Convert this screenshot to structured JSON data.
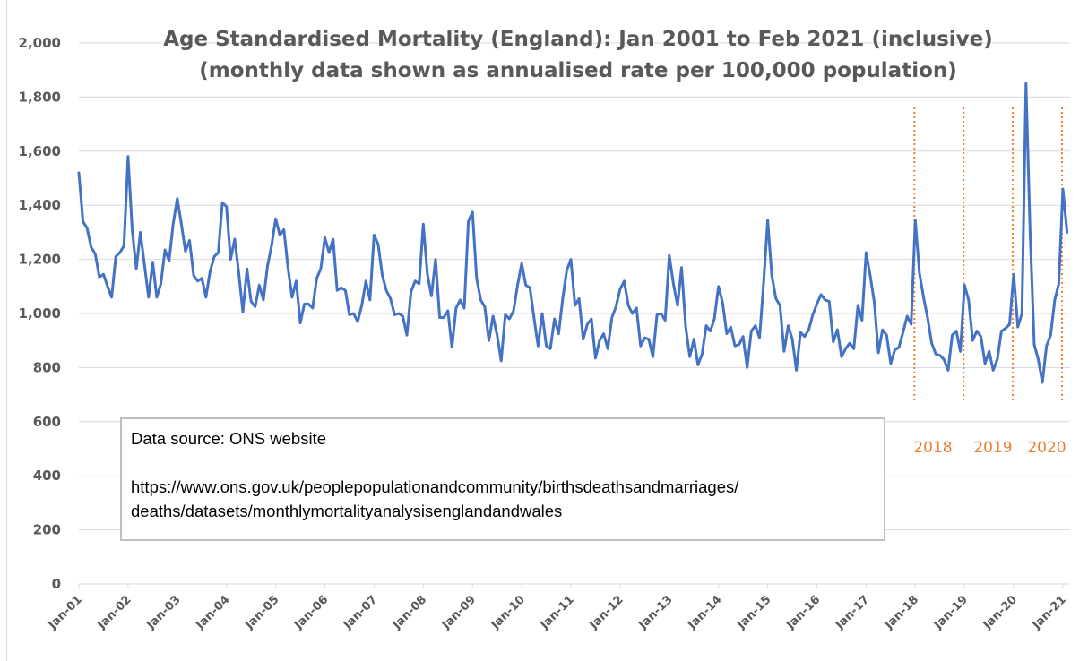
{
  "chart_data": {
    "type": "line",
    "title": "Age Standardised Mortality (England): Jan 2001 to Feb 2021 (inclusive)",
    "subtitle": "(monthly data shown as annualised rate per 100,000 population)",
    "xlabel": "",
    "ylabel": "",
    "ylim": [
      0,
      2000
    ],
    "grid": true,
    "legend": "none",
    "y_ticks": [
      "0",
      "200",
      "400",
      "600",
      "800",
      "1,000",
      "1,200",
      "1,400",
      "1,600",
      "1,800",
      "2,000"
    ],
    "x_ticks": [
      "Jan-01",
      "Jan-02",
      "Jan-03",
      "Jan-04",
      "Jan-05",
      "Jan-06",
      "Jan-07",
      "Jan-08",
      "Jan-09",
      "Jan-10",
      "Jan-11",
      "Jan-12",
      "Jan-13",
      "Jan-14",
      "Jan-15",
      "Jan-16",
      "Jan-17",
      "Jan-18",
      "Jan-19",
      "Jan-20",
      "Jan-21"
    ],
    "x_start": "Jan-01",
    "x_end": "Feb-21",
    "series": [
      {
        "name": "Age standardised mortality rate",
        "color": "#4472c4",
        "values": [
          1520,
          1340,
          1315,
          1245,
          1220,
          1135,
          1145,
          1100,
          1060,
          1210,
          1225,
          1250,
          1580,
          1310,
          1165,
          1300,
          1180,
          1060,
          1190,
          1060,
          1110,
          1235,
          1195,
          1330,
          1425,
          1330,
          1230,
          1270,
          1140,
          1120,
          1130,
          1060,
          1155,
          1210,
          1225,
          1410,
          1395,
          1200,
          1275,
          1150,
          1005,
          1165,
          1045,
          1025,
          1105,
          1050,
          1175,
          1250,
          1350,
          1290,
          1310,
          1170,
          1060,
          1120,
          965,
          1035,
          1035,
          1020,
          1130,
          1165,
          1280,
          1225,
          1275,
          1085,
          1095,
          1085,
          995,
          1000,
          970,
          1030,
          1120,
          1050,
          1290,
          1255,
          1140,
          1085,
          1055,
          995,
          1000,
          990,
          920,
          1080,
          1120,
          1110,
          1330,
          1145,
          1065,
          1200,
          985,
          985,
          1010,
          875,
          1020,
          1050,
          1020,
          1340,
          1375,
          1130,
          1050,
          1025,
          900,
          990,
          920,
          825,
          995,
          980,
          1010,
          1105,
          1185,
          1105,
          1095,
          985,
          880,
          1000,
          880,
          870,
          980,
          925,
          1055,
          1160,
          1200,
          1030,
          1055,
          905,
          960,
          980,
          835,
          900,
          925,
          870,
          985,
          1025,
          1090,
          1120,
          1030,
          1000,
          1020,
          880,
          910,
          905,
          840,
          995,
          1000,
          975,
          1215,
          1110,
          1030,
          1170,
          950,
          840,
          905,
          810,
          850,
          955,
          935,
          980,
          1100,
          1040,
          925,
          950,
          880,
          885,
          915,
          800,
          935,
          955,
          910,
          1110,
          1345,
          1140,
          1055,
          1030,
          860,
          955,
          905,
          790,
          930,
          915,
          940,
          995,
          1035,
          1070,
          1050,
          1045,
          895,
          940,
          840,
          870,
          890,
          870,
          1030,
          975,
          1225,
          1140,
          1040,
          855,
          940,
          920,
          815,
          865,
          875,
          930,
          990,
          960,
          1345,
          1150,
          1060,
          985,
          890,
          850,
          845,
          830,
          790,
          920,
          935,
          860,
          1105,
          1050,
          900,
          935,
          915,
          815,
          860,
          790,
          830,
          935,
          945,
          960,
          1145,
          950,
          1000,
          1850,
          1300,
          885,
          830,
          745,
          880,
          920,
          1050,
          1110,
          1460,
          1300
        ]
      }
    ],
    "annotations": [
      {
        "type": "vertical-dotted-line",
        "at": "Jan-18",
        "color": "#ed7d31",
        "label": "2018"
      },
      {
        "type": "vertical-dotted-line",
        "at": "Jan-19",
        "color": "#ed7d31",
        "label": "2019"
      },
      {
        "type": "vertical-dotted-line",
        "at": "Jan-20",
        "color": "#ed7d31",
        "label": "2020"
      },
      {
        "type": "vertical-dotted-line",
        "at": "Jan-21",
        "color": "#ed7d31",
        "label": ""
      }
    ]
  },
  "text_box": {
    "line1": "Data source: ONS website",
    "line2": "https://www.ons.gov.uk/peoplepopulationandcommunity/birthsdeathsandmarriages/",
    "line3": "deaths/datasets/monthlymortalityanalysisenglandandwales"
  },
  "colors": {
    "line": "#4472c4",
    "annotation": "#ed7d31",
    "grid": "#d9d9d9",
    "text": "#595959"
  }
}
